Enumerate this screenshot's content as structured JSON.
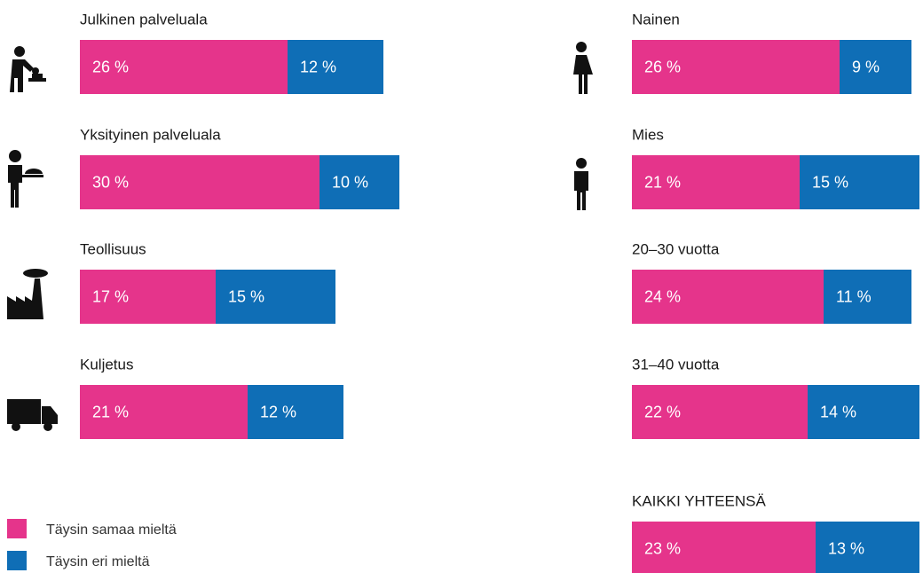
{
  "chart_data": {
    "type": "bar",
    "orientation": "horizontal",
    "stacked": true,
    "categories": [
      "Julkinen palveluala",
      "Yksityinen palveluala",
      "Teollisuus",
      "Kuljetus",
      "Nainen",
      "Mies",
      "20–30 vuotta",
      "31–40 vuotta",
      "KAIKKI YHTEENSÄ"
    ],
    "series": [
      {
        "name": "Täysin samaa mieltä",
        "color": "#e5348b",
        "values": [
          26,
          30,
          17,
          21,
          26,
          21,
          24,
          22,
          23
        ],
        "value_labels": [
          "26 %",
          "30 %",
          "17 %",
          "21 %",
          "26 %",
          "21 %",
          "24 %",
          "22 %",
          "23 %"
        ]
      },
      {
        "name": "Täysin eri mieltä",
        "color": "#0f6eb6",
        "values": [
          12,
          10,
          15,
          12,
          9,
          15,
          11,
          14,
          13
        ],
        "value_labels": [
          "12 %",
          "10 %",
          "15 %",
          "12 %",
          "9 %",
          "15 %",
          "11 %",
          "14 %",
          "13 %"
        ]
      }
    ]
  }
}
